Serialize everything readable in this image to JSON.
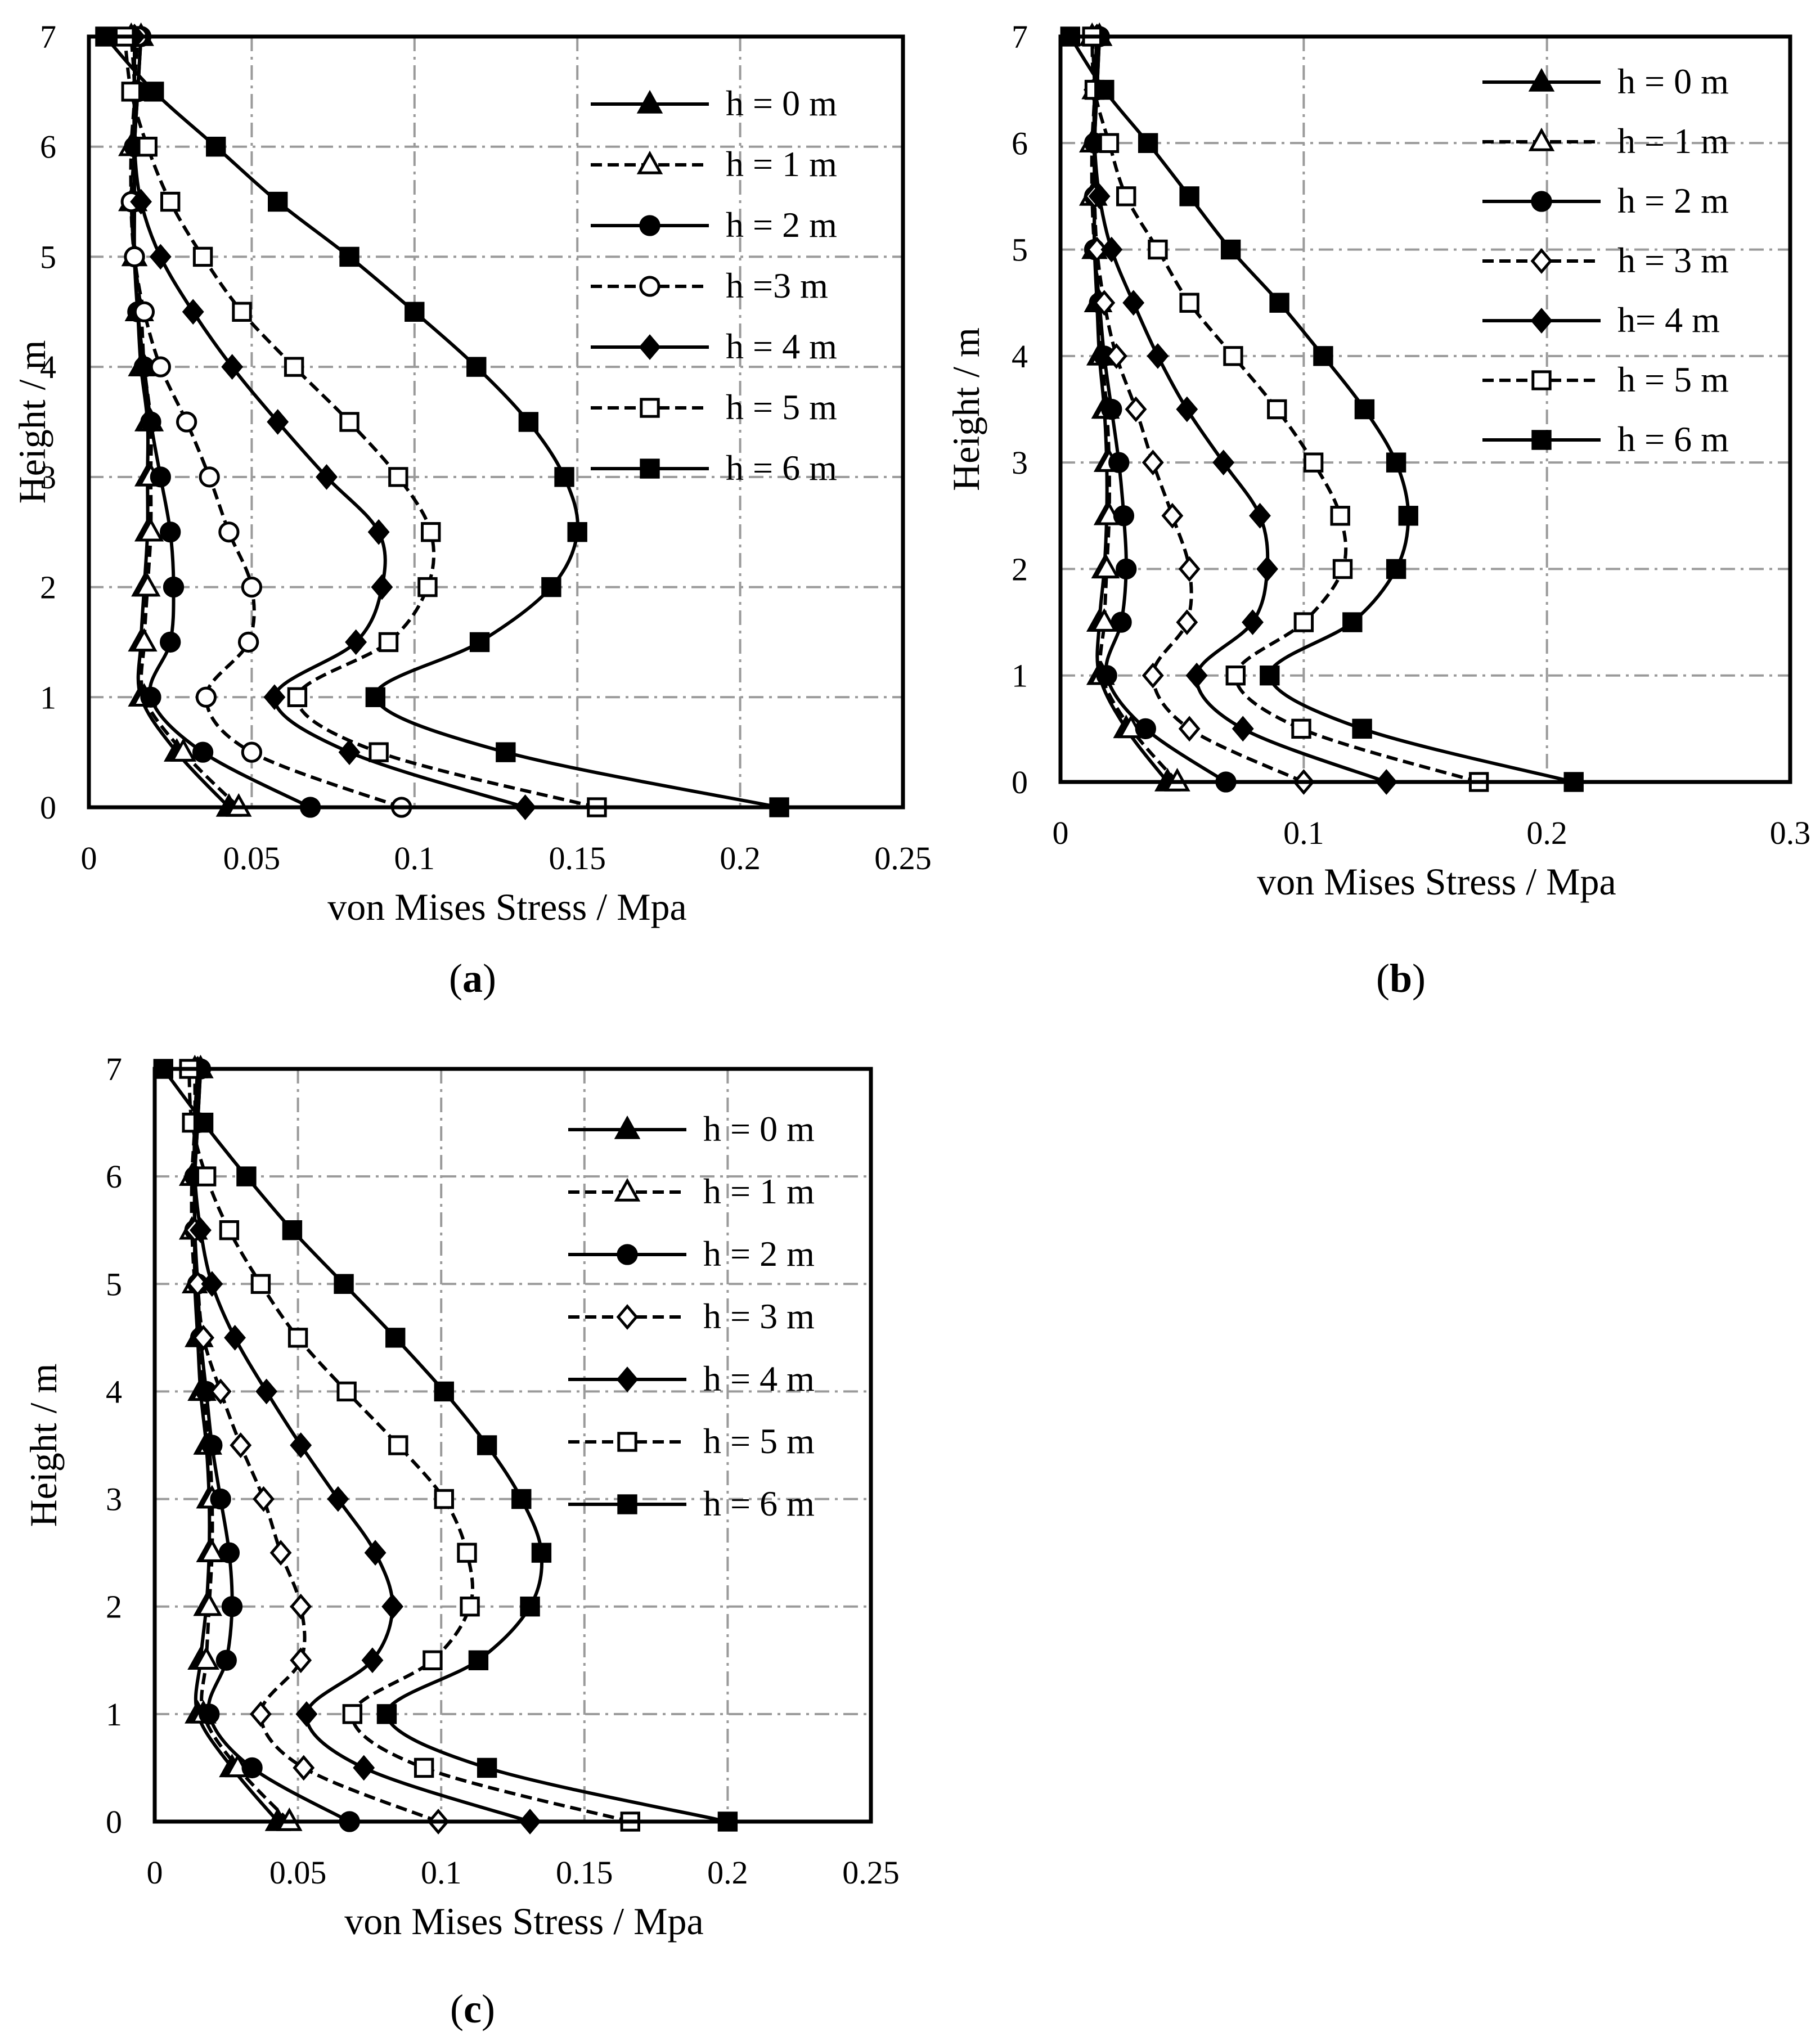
{
  "figure": {
    "panels": [
      {
        "id": "a",
        "caption_open": "(",
        "caption_letter": "a",
        "caption_close": ")"
      },
      {
        "id": "b",
        "caption_open": "(",
        "caption_letter": "b",
        "caption_close": ")"
      },
      {
        "id": "c",
        "caption_open": "(",
        "caption_letter": "c",
        "caption_close": ")"
      }
    ]
  },
  "chart_data": [
    {
      "type": "line",
      "panel": "a",
      "xlabel": "von Mises Stress / Mpa",
      "ylabel": "Height / m",
      "xlim": [
        0,
        0.25
      ],
      "ylim": [
        0,
        7
      ],
      "xticks": [
        0,
        0.05,
        0.1,
        0.15,
        0.2,
        0.25
      ],
      "xtick_labels": [
        "0",
        "0.05",
        "0.1",
        "0.15",
        "0.2",
        "0.25"
      ],
      "yticks": [
        0,
        1,
        2,
        3,
        4,
        5,
        6,
        7
      ],
      "ytick_labels": [
        "0",
        "1",
        "2",
        "3",
        "4",
        "5",
        "6",
        "7"
      ],
      "grid": true,
      "legend_position": "top-right",
      "y": [
        0,
        0.5,
        1,
        1.5,
        2,
        2.5,
        3,
        3.5,
        4,
        4.5,
        5,
        5.5,
        6,
        6.5,
        7
      ],
      "series": [
        {
          "name": "h = 0 m",
          "marker": "triangle-filled",
          "dashed": false,
          "values": [
            0.043,
            0.027,
            0.016,
            0.016,
            0.017,
            0.018,
            0.018,
            0.018,
            0.016,
            0.015,
            0.014,
            0.014,
            0.014,
            0.015,
            0.016
          ]
        },
        {
          "name": "h = 1 m",
          "marker": "triangle-open",
          "dashed": true,
          "values": [
            0.046,
            0.029,
            0.017,
            0.017,
            0.018,
            0.019,
            0.019,
            0.019,
            0.017,
            0.016,
            0.014,
            0.013,
            0.013,
            0.014,
            0.013
          ]
        },
        {
          "name": "h = 2 m",
          "marker": "circle-filled",
          "dashed": false,
          "values": [
            0.068,
            0.035,
            0.019,
            0.025,
            0.026,
            0.025,
            0.022,
            0.019,
            0.017,
            0.015,
            0.014,
            0.014,
            0.014,
            0.015,
            0.016
          ]
        },
        {
          "name": "h  =3 m",
          "marker": "circle-open",
          "dashed": true,
          "values": [
            0.096,
            0.05,
            0.036,
            0.049,
            0.05,
            0.043,
            0.037,
            0.03,
            0.022,
            0.017,
            0.014,
            0.013,
            0.014,
            0.014,
            0.015
          ]
        },
        {
          "name": "h = 4 m",
          "marker": "diamond-filled",
          "dashed": false,
          "values": [
            0.134,
            0.08,
            0.057,
            0.082,
            0.09,
            0.089,
            0.073,
            0.058,
            0.044,
            0.032,
            0.022,
            0.016,
            0.014,
            0.014,
            0.014
          ]
        },
        {
          "name": "h = 5 m",
          "marker": "square-open",
          "dashed": true,
          "values": [
            0.156,
            0.089,
            0.064,
            0.092,
            0.104,
            0.105,
            0.095,
            0.08,
            0.063,
            0.047,
            0.035,
            0.025,
            0.018,
            0.013,
            0.011
          ]
        },
        {
          "name": "h = 6 m",
          "marker": "square-filled",
          "dashed": false,
          "values": [
            0.212,
            0.128,
            0.088,
            0.12,
            0.142,
            0.15,
            0.146,
            0.135,
            0.119,
            0.1,
            0.08,
            0.058,
            0.039,
            0.02,
            0.005
          ]
        }
      ]
    },
    {
      "type": "line",
      "panel": "b",
      "xlabel": "von Mises Stress / Mpa",
      "ylabel": "Height / m",
      "xlim": [
        0,
        0.3
      ],
      "ylim": [
        0,
        7
      ],
      "xticks": [
        0,
        0.1,
        0.2,
        0.3
      ],
      "xtick_labels": [
        "0",
        "0.1",
        "0.2",
        "0.3"
      ],
      "yticks": [
        0,
        1,
        2,
        3,
        4,
        5,
        6,
        7
      ],
      "ytick_labels": [
        "0",
        "1",
        "2",
        "3",
        "4",
        "5",
        "6",
        "7"
      ],
      "grid": true,
      "legend_position": "top-right",
      "y": [
        0,
        0.5,
        1,
        1.5,
        2,
        2.5,
        3,
        3.5,
        4,
        4.5,
        5,
        5.5,
        6,
        6.5,
        7
      ],
      "series": [
        {
          "name": "h = 0 m",
          "marker": "triangle-filled",
          "dashed": false,
          "values": [
            0.044,
            0.027,
            0.016,
            0.016,
            0.018,
            0.019,
            0.019,
            0.018,
            0.016,
            0.015,
            0.014,
            0.014,
            0.014,
            0.015,
            0.016
          ]
        },
        {
          "name": "h = 1 m",
          "marker": "triangle-open",
          "dashed": true,
          "values": [
            0.048,
            0.029,
            0.017,
            0.018,
            0.019,
            0.02,
            0.02,
            0.019,
            0.017,
            0.016,
            0.014,
            0.013,
            0.013,
            0.014,
            0.013
          ]
        },
        {
          "name": "h = 2 m",
          "marker": "circle-filled",
          "dashed": false,
          "values": [
            0.068,
            0.035,
            0.019,
            0.025,
            0.027,
            0.026,
            0.024,
            0.021,
            0.018,
            0.016,
            0.014,
            0.014,
            0.014,
            0.015,
            0.016
          ]
        },
        {
          "name": "h = 3 m",
          "marker": "diamond-open",
          "dashed": true,
          "values": [
            0.1,
            0.053,
            0.038,
            0.052,
            0.053,
            0.046,
            0.038,
            0.031,
            0.023,
            0.018,
            0.015,
            0.014,
            0.014,
            0.014,
            0.015
          ]
        },
        {
          "name": "h= 4 m",
          "marker": "diamond-filled",
          "dashed": false,
          "values": [
            0.134,
            0.075,
            0.056,
            0.079,
            0.085,
            0.082,
            0.067,
            0.052,
            0.04,
            0.03,
            0.021,
            0.016,
            0.014,
            0.014,
            0.015
          ]
        },
        {
          "name": "h = 5 m",
          "marker": "square-open",
          "dashed": true,
          "values": [
            0.172,
            0.099,
            0.072,
            0.1,
            0.116,
            0.115,
            0.104,
            0.089,
            0.071,
            0.053,
            0.04,
            0.027,
            0.02,
            0.014,
            0.013
          ]
        },
        {
          "name": "h = 6 m",
          "marker": "square-filled",
          "dashed": false,
          "values": [
            0.211,
            0.124,
            0.086,
            0.12,
            0.138,
            0.143,
            0.138,
            0.125,
            0.108,
            0.09,
            0.07,
            0.053,
            0.036,
            0.018,
            0.004
          ]
        }
      ]
    },
    {
      "type": "line",
      "panel": "c",
      "xlabel": "von Mises Stress / Mpa",
      "ylabel": "Height / m",
      "xlim": [
        0,
        0.25
      ],
      "ylim": [
        0,
        7
      ],
      "xticks": [
        0,
        0.05,
        0.1,
        0.15,
        0.2,
        0.25
      ],
      "xtick_labels": [
        "0",
        "0.05",
        "0.1",
        "0.15",
        "0.2",
        "0.25"
      ],
      "yticks": [
        0,
        1,
        2,
        3,
        4,
        5,
        6,
        7
      ],
      "ytick_labels": [
        "0",
        "1",
        "2",
        "3",
        "4",
        "5",
        "6",
        "7"
      ],
      "grid": true,
      "legend_position": "top-right",
      "y": [
        0,
        0.5,
        1,
        1.5,
        2,
        2.5,
        3,
        3.5,
        4,
        4.5,
        5,
        5.5,
        6,
        6.5,
        7
      ],
      "series": [
        {
          "name": "h = 0 m",
          "marker": "triangle-filled",
          "dashed": false,
          "values": [
            0.043,
            0.027,
            0.015,
            0.016,
            0.018,
            0.019,
            0.019,
            0.018,
            0.016,
            0.015,
            0.014,
            0.014,
            0.014,
            0.015,
            0.016
          ]
        },
        {
          "name": "h = 1 m",
          "marker": "triangle-open",
          "dashed": true,
          "values": [
            0.047,
            0.029,
            0.017,
            0.018,
            0.019,
            0.02,
            0.02,
            0.019,
            0.017,
            0.016,
            0.014,
            0.013,
            0.013,
            0.014,
            0.014
          ]
        },
        {
          "name": "h = 2 m",
          "marker": "circle-filled",
          "dashed": false,
          "values": [
            0.068,
            0.034,
            0.019,
            0.025,
            0.027,
            0.026,
            0.023,
            0.02,
            0.018,
            0.016,
            0.015,
            0.014,
            0.014,
            0.015,
            0.016
          ]
        },
        {
          "name": "h = 3 m",
          "marker": "diamond-open",
          "dashed": true,
          "values": [
            0.099,
            0.052,
            0.037,
            0.051,
            0.051,
            0.044,
            0.038,
            0.03,
            0.023,
            0.017,
            0.015,
            0.014,
            0.014,
            0.014,
            0.015
          ]
        },
        {
          "name": "h = 4 m",
          "marker": "diamond-filled",
          "dashed": false,
          "values": [
            0.131,
            0.073,
            0.053,
            0.076,
            0.083,
            0.077,
            0.064,
            0.051,
            0.039,
            0.028,
            0.02,
            0.016,
            0.014,
            0.014,
            0.015
          ]
        },
        {
          "name": "h = 5 m",
          "marker": "square-open",
          "dashed": true,
          "values": [
            0.166,
            0.094,
            0.069,
            0.097,
            0.11,
            0.109,
            0.101,
            0.085,
            0.067,
            0.05,
            0.037,
            0.026,
            0.018,
            0.013,
            0.012
          ]
        },
        {
          "name": "h = 6 m",
          "marker": "square-filled",
          "dashed": false,
          "values": [
            0.2,
            0.116,
            0.081,
            0.113,
            0.131,
            0.135,
            0.128,
            0.116,
            0.101,
            0.084,
            0.066,
            0.048,
            0.032,
            0.017,
            0.003
          ]
        }
      ]
    }
  ]
}
